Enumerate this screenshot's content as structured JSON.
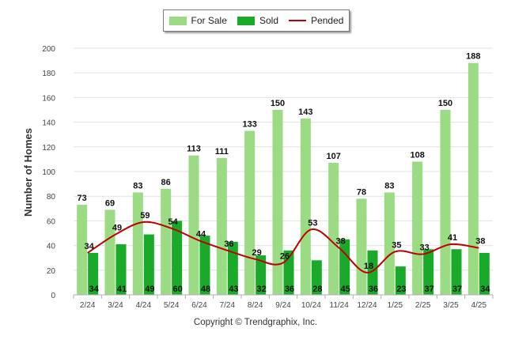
{
  "legend": {
    "for_sale_label": "For Sale",
    "sold_label": "Sold",
    "pended_label": "Pended"
  },
  "copyright": "Copyright © Trendgraphix, Inc.",
  "colors": {
    "for_sale": "#9adb84",
    "sold": "#1aaa2a",
    "pended": "#c00000",
    "grid": "#e2e2e2",
    "axis": "#b0b0b0"
  },
  "chart_data": {
    "type": "bar",
    "title": "",
    "xlabel": "",
    "ylabel": "Number of Homes",
    "ylim": [
      0,
      200
    ],
    "yticks": [
      0,
      20,
      40,
      60,
      80,
      100,
      120,
      140,
      160,
      180,
      200
    ],
    "grid": true,
    "legend_position": "top-center",
    "categories": [
      "2/24",
      "3/24",
      "4/24",
      "5/24",
      "6/24",
      "7/24",
      "8/24",
      "9/24",
      "10/24",
      "11/24",
      "12/24",
      "1/25",
      "2/25",
      "3/25",
      "4/25"
    ],
    "series": [
      {
        "name": "For Sale",
        "type": "bar",
        "values": [
          73,
          69,
          83,
          86,
          113,
          111,
          133,
          150,
          143,
          107,
          78,
          83,
          108,
          150,
          188
        ]
      },
      {
        "name": "Sold",
        "type": "bar",
        "values": [
          34,
          41,
          49,
          60,
          48,
          43,
          32,
          36,
          28,
          45,
          36,
          23,
          37,
          37,
          34
        ]
      },
      {
        "name": "Pended",
        "type": "line",
        "values": [
          34,
          49,
          59,
          54,
          44,
          36,
          29,
          26,
          53,
          38,
          18,
          35,
          33,
          41,
          38
        ]
      }
    ]
  }
}
